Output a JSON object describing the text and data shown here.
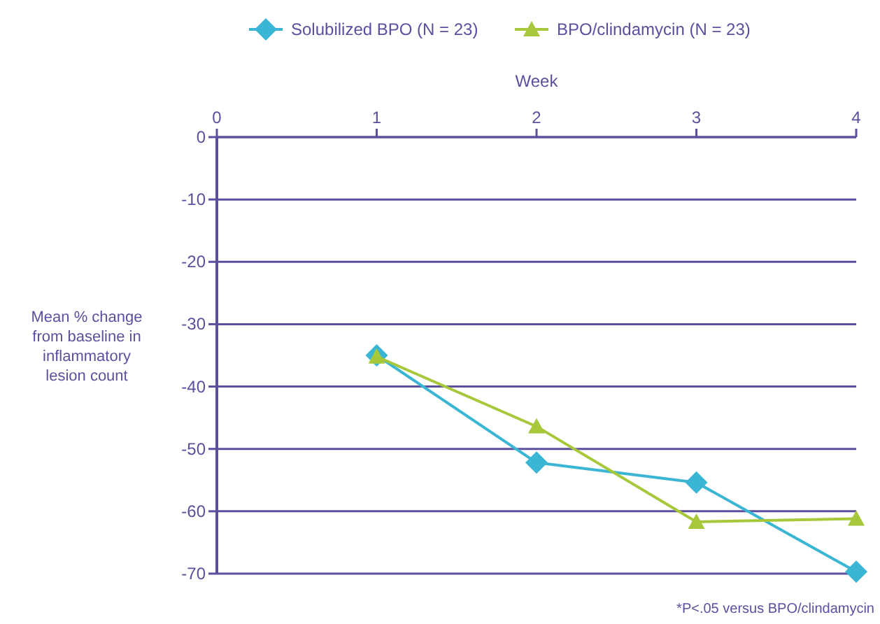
{
  "chart_data": {
    "type": "line",
    "xlabel": "Week",
    "ylabel": "Mean % change from baseline in inflammatory lesion count",
    "x": [
      1,
      2,
      3,
      4
    ],
    "series": [
      {
        "name": "Solubilized BPO (N = 23)",
        "color": "#3ab6d4",
        "values": [
          -35,
          -52.2,
          -55.4,
          -69.7
        ],
        "marker": "diamond"
      },
      {
        "name": "BPO/clindamycin (N = 23)",
        "color": "#a6c83a",
        "values": [
          -35.2,
          -46.4,
          -61.7,
          -61.2
        ],
        "marker": "triangle"
      }
    ],
    "xlim": [
      0,
      4
    ],
    "xticks": [
      0,
      1,
      2,
      3,
      4
    ],
    "ylim": [
      -70,
      0
    ],
    "yticks": [
      0,
      -10,
      -20,
      -30,
      -40,
      -50,
      -60,
      -70
    ],
    "grid": "y",
    "legend": "top",
    "annotations": [
      "*P<.05 versus BPO/clindamycin"
    ]
  }
}
